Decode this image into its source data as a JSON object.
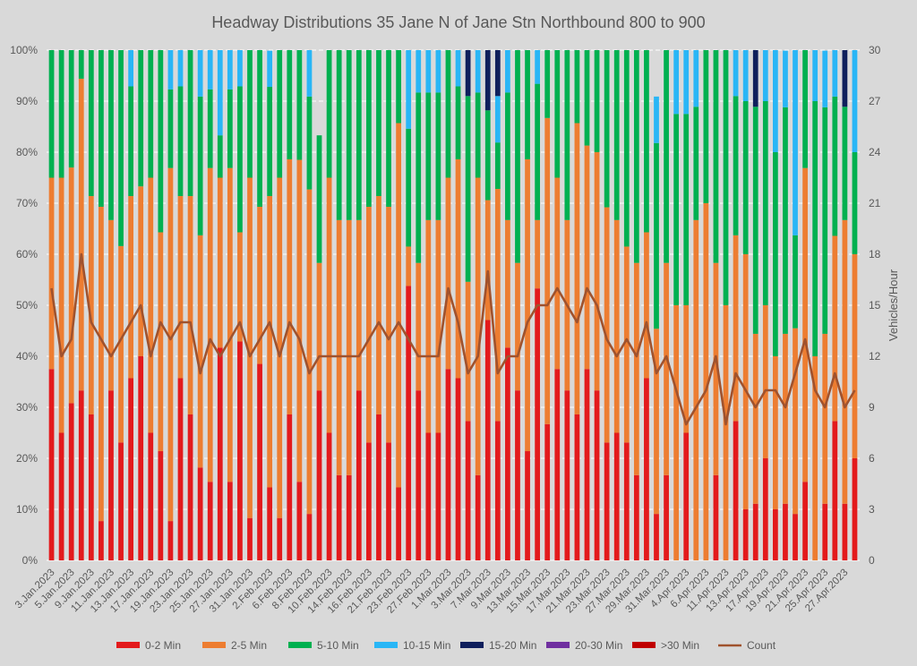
{
  "chart_data": {
    "type": "bar",
    "stacked": true,
    "normalized": true,
    "title": "Headway Distributions 35 Jane  N of Jane Stn Northbound 800 to 900",
    "xlabel": "",
    "ylabel": "",
    "y2label": "Vehicles/Hour",
    "ylim": [
      0,
      100
    ],
    "y2lim": [
      0,
      30
    ],
    "yticks": [
      "0%",
      "10%",
      "20%",
      "30%",
      "40%",
      "50%",
      "60%",
      "70%",
      "80%",
      "90%",
      "100%"
    ],
    "y2ticks": [
      "0",
      "3",
      "6",
      "9",
      "12",
      "15",
      "18",
      "21",
      "24",
      "27",
      "30"
    ],
    "grid": true,
    "legend_position": "bottom",
    "x_tick_labels": [
      "3.Jan.2023",
      "5.Jan.2023",
      "9.Jan.2023",
      "11.Jan.2023",
      "13.Jan.2023",
      "17.Jan.2023",
      "19.Jan.2023",
      "23.Jan.2023",
      "25.Jan.2023",
      "27.Jan.2023",
      "31.Jan.2023",
      "2.Feb.2023",
      "6.Feb.2023",
      "8.Feb.2023",
      "10.Feb.2023",
      "14.Feb.2023",
      "16.Feb.2023",
      "21.Feb.2023",
      "23.Feb.2023",
      "27.Feb.2023",
      "1.Mar.2023",
      "3.Mar.2023",
      "7.Mar.2023",
      "9.Mar.2023",
      "13.Mar.2023",
      "15.Mar.2023",
      "17.Mar.2023",
      "21.Mar.2023",
      "23.Mar.2023",
      "27.Mar.2023",
      "29.Mar.2023",
      "31.Mar.2023",
      "4.Apr.2023",
      "6.Apr.2023",
      "11.Apr.2023",
      "13.Apr.2023",
      "17.Apr.2023",
      "19.Apr.2023",
      "21.Apr.2023",
      "25.Apr.2023",
      "27.Apr.2023"
    ],
    "series": [
      {
        "name": "0-2 Min",
        "color": "#e31a1c",
        "values": [
          37.5,
          25,
          30.8,
          33.3,
          28.6,
          7.7,
          33.3,
          23.1,
          35.7,
          40,
          25,
          21.4,
          7.7,
          35.7,
          28.6,
          18.2,
          15.4,
          41.7,
          15.4,
          42.9,
          8.3,
          38.5,
          14.3,
          8.3,
          28.6,
          15.4,
          9.1,
          33.3,
          25,
          16.7,
          16.7,
          33.3,
          23.1,
          28.6,
          23.1,
          14.3,
          53.8,
          33.3,
          25,
          25,
          37.5,
          35.7,
          27.3,
          16.7,
          47.1,
          27.3,
          41.7,
          33.3,
          21.4,
          53.3,
          26.7,
          37.5,
          33.3,
          28.6,
          37.5,
          33.3,
          23.1,
          25,
          23.1,
          16.7,
          35.7,
          9.1,
          16.7,
          0,
          25,
          0,
          0,
          16.7,
          0,
          27.3,
          10,
          11.1,
          20,
          10,
          11.1,
          9.1,
          15.4,
          0,
          11.1,
          27.3,
          11.1,
          20
        ]
      },
      {
        "name": "2-5 Min",
        "color": "#ed7d31",
        "values": [
          37.5,
          50,
          46.2,
          61.1,
          42.8,
          61.6,
          33.4,
          38.5,
          35.7,
          33.3,
          50,
          42.9,
          69.2,
          35.7,
          42.8,
          45.5,
          61.5,
          33.3,
          61.5,
          21.4,
          66.7,
          30.8,
          57.1,
          66.7,
          50,
          63.1,
          63.6,
          25,
          50,
          50,
          50,
          33.4,
          46.2,
          42.8,
          46.2,
          71.4,
          7.7,
          25,
          41.7,
          41.7,
          37.5,
          42.9,
          27.3,
          58.3,
          23.5,
          45.5,
          25,
          25,
          57.2,
          13.4,
          60,
          37.5,
          33.4,
          57.1,
          43.8,
          46.7,
          46.1,
          41.7,
          38.4,
          41.6,
          28.6,
          36.3,
          41.6,
          50,
          25,
          66.7,
          70,
          41.6,
          50,
          36.4,
          50,
          33.3,
          30,
          30,
          33.3,
          36.4,
          61.5,
          40,
          33.3,
          36.3,
          55.6,
          40
        ]
      },
      {
        "name": "5-10 Min",
        "color": "#00b050",
        "values": [
          25,
          25,
          23,
          5.6,
          28.6,
          30.7,
          33.3,
          38.4,
          21.5,
          26.7,
          25,
          35.7,
          15.4,
          21.5,
          28.6,
          27.2,
          15.4,
          8.3,
          15.4,
          28.6,
          25,
          30.7,
          21.4,
          25,
          21.4,
          21.5,
          18.2,
          25,
          25,
          33.3,
          33.3,
          33.3,
          30.7,
          28.6,
          30.7,
          14.3,
          23.1,
          33.4,
          25,
          25,
          25,
          14.3,
          36.4,
          16.7,
          17.6,
          9.1,
          25,
          41.7,
          21.4,
          26.7,
          13.3,
          25,
          33.3,
          14.3,
          18.7,
          20,
          30.8,
          33.3,
          38.5,
          41.7,
          35.7,
          36.4,
          41.7,
          37.5,
          37.5,
          22.2,
          30,
          41.7,
          50,
          27.3,
          30,
          44.5,
          40,
          40,
          44.4,
          18.2,
          23.1,
          50,
          44.4,
          27.3,
          22.2,
          20
        ]
      },
      {
        "name": "10-15 Min",
        "color": "#29b6f6",
        "values": [
          0,
          0,
          0,
          0,
          0,
          0,
          0,
          0,
          7.1,
          0,
          0,
          0,
          7.7,
          7.1,
          0,
          9.1,
          7.7,
          16.7,
          7.7,
          7.1,
          0,
          0,
          7.1,
          0,
          0,
          0,
          9.1,
          0,
          0,
          0,
          0,
          0,
          0,
          0,
          0,
          0,
          15.4,
          8.3,
          8.3,
          8.3,
          0,
          7.1,
          0,
          8.3,
          0,
          9.1,
          8.3,
          0,
          0,
          6.6,
          0,
          0,
          0,
          0,
          0,
          0,
          0,
          0,
          0,
          0,
          0,
          9.1,
          0,
          12.5,
          12.5,
          11.1,
          0,
          0,
          0,
          9.1,
          10,
          0,
          10,
          20,
          11.1,
          36.3,
          0,
          10,
          11.1,
          9.1,
          0,
          20
        ]
      },
      {
        "name": "15-20 Min",
        "color": "#0f1f5c",
        "values": [
          0,
          0,
          0,
          0,
          0,
          0,
          0,
          0,
          0,
          0,
          0,
          0,
          0,
          0,
          0,
          0,
          8.3,
          0,
          0,
          0,
          0,
          0,
          0,
          0,
          0,
          0,
          0,
          0,
          0,
          0,
          0,
          0,
          0,
          0,
          0,
          0,
          0,
          0,
          0,
          0,
          0,
          0,
          9.0,
          0,
          11.8,
          9.0,
          0,
          0,
          0,
          0,
          0,
          0,
          0,
          0,
          0,
          0,
          0,
          0,
          0,
          0,
          0,
          0,
          0,
          0,
          0,
          0,
          0,
          0,
          0,
          0,
          0,
          11.1,
          0,
          0,
          0,
          0,
          0,
          0,
          0,
          0,
          11.1,
          0
        ]
      },
      {
        "name": "20-30 Min",
        "color": "#7030a0",
        "values": []
      },
      {
        "name": ">30 Min",
        "color": "#c00000",
        "values": []
      }
    ],
    "count": {
      "name": "Count",
      "color": "#a0522d",
      "values": [
        16,
        12,
        13,
        18,
        14,
        13,
        12,
        13,
        14,
        15,
        12,
        14,
        13,
        14,
        14,
        11,
        13,
        12,
        13,
        14,
        12,
        13,
        14,
        12,
        14,
        13,
        11,
        12,
        12,
        12,
        12,
        12,
        13,
        14,
        13,
        14,
        13,
        12,
        12,
        12,
        16,
        14,
        11,
        12,
        17,
        11,
        12,
        12,
        14,
        15,
        15,
        16,
        15,
        14,
        16,
        15,
        13,
        12,
        13,
        12,
        14,
        11,
        12,
        10,
        8,
        9,
        10,
        12,
        8,
        11,
        10,
        9,
        10,
        10,
        9,
        11,
        13,
        10,
        9,
        11,
        9,
        10
      ]
    }
  }
}
